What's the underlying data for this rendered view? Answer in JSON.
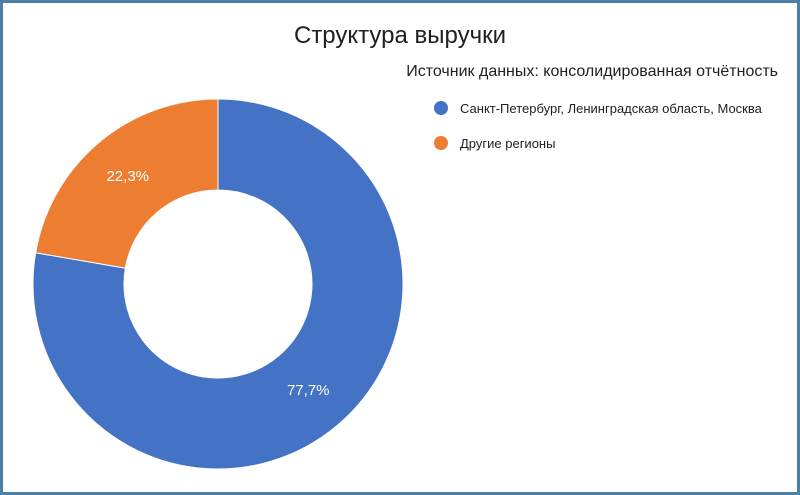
{
  "chart_data": {
    "type": "pie",
    "donut": true,
    "title": "Структура выручки",
    "subtitle": "Источник данных: консолидированная отчётность",
    "legend_position": "top-right",
    "series": [
      {
        "name": "Санкт-Петербург, Ленинградская область, Москва",
        "value": 77.7,
        "label": "77,7%",
        "color": "#4472c4"
      },
      {
        "name": "Другие регионы",
        "value": 22.3,
        "label": "22,3%",
        "color": "#ed7d31"
      }
    ]
  },
  "colors": {
    "frame_border": "#4a7fa6",
    "background": "#ffffff"
  }
}
